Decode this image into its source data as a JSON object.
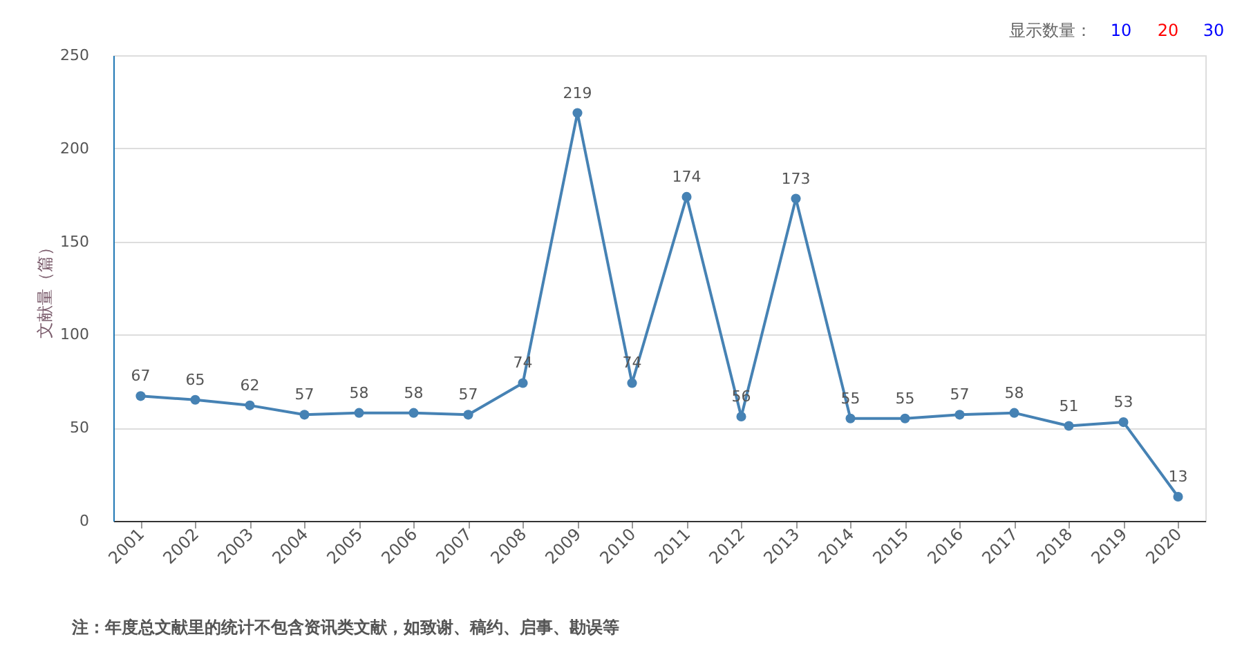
{
  "chart_data": {
    "type": "line",
    "ylabel": "文献量（篇）",
    "categories": [
      "2001",
      "2002",
      "2003",
      "2004",
      "2005",
      "2006",
      "2007",
      "2008",
      "2009",
      "2010",
      "2011",
      "2012",
      "2013",
      "2014",
      "2015",
      "2016",
      "2017",
      "2018",
      "2019",
      "2020"
    ],
    "series": [
      {
        "color": "#4682b4",
        "values": [
          67,
          65,
          62,
          57,
          58,
          58,
          57,
          74,
          219,
          74,
          174,
          56,
          173,
          55,
          55,
          57,
          58,
          51,
          53,
          13
        ]
      }
    ],
    "ylim": [
      0,
      250
    ],
    "yticks": [
      0,
      50,
      100,
      150,
      200,
      250
    ],
    "grid": "y",
    "marker": "circle",
    "data_labels": true,
    "annotations": [
      "显示数量：",
      "10",
      "20",
      "30",
      "注：年度总文献里的统计不包含资讯类文献，如致谢、稿约、启事、勘误等"
    ]
  }
}
